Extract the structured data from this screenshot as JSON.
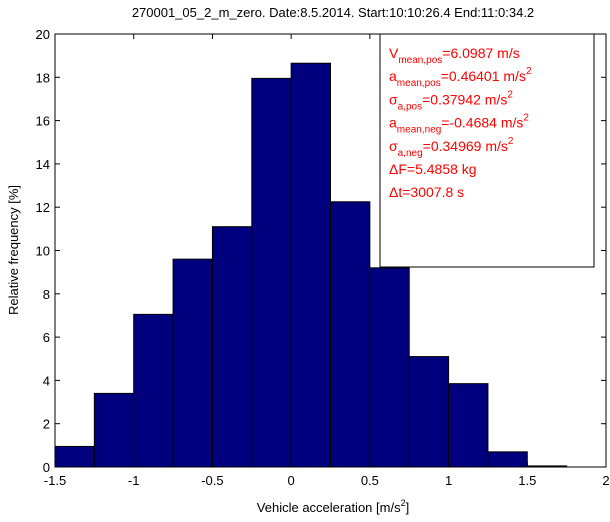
{
  "colors": {
    "bar_fill": "#00007f",
    "bar_edge": "#000000",
    "annotation": "#ff0000",
    "axes": "#000000",
    "background": "#ffffff"
  },
  "chart_data": {
    "type": "bar",
    "title": "270001_05_2_m_zero. Date:8.5.2014. Start:10:10:26.4 End:11:0:34.2",
    "xlabel": "Vehicle acceleration [m/s",
    "xlabel_sup": "2",
    "xlabel_end": "]",
    "ylabel": "Relative frequency [%]",
    "xlim": [
      -1.5,
      2
    ],
    "ylim": [
      0,
      20
    ],
    "bin_edges": [
      -1.5,
      -1.25,
      -1.0,
      -0.75,
      -0.5,
      -0.25,
      0.0,
      0.25,
      0.5,
      0.75,
      1.0,
      1.25,
      1.5,
      1.75,
      2.0
    ],
    "values": [
      0.95,
      3.4,
      7.05,
      9.6,
      11.1,
      17.95,
      18.65,
      12.25,
      9.2,
      5.1,
      3.85,
      0.7,
      0.05,
      0.0
    ],
    "x_ticks": [
      -1.5,
      -1,
      -0.5,
      0,
      0.5,
      1,
      1.5,
      2
    ],
    "x_tick_labels": [
      "-1.5",
      "-1",
      "-0.5",
      "0",
      "0.5",
      "1",
      "1.5",
      "2"
    ],
    "y_ticks": [
      0,
      2,
      4,
      6,
      8,
      10,
      12,
      14,
      16,
      18,
      20
    ],
    "y_tick_labels": [
      "0",
      "2",
      "4",
      "6",
      "8",
      "10",
      "12",
      "14",
      "16",
      "18",
      "20"
    ],
    "grid": false,
    "annotation_lines": [
      {
        "sym": "V",
        "sub": "mean,pos",
        "val": "=6.0987 m/s",
        "sup": ""
      },
      {
        "sym": "a",
        "sub": "mean,pos",
        "val": "=0.46401 m/s",
        "sup": "2"
      },
      {
        "sym": "σ",
        "sub": "a,pos",
        "val": "=0.37942 m/s",
        "sup": "2"
      },
      {
        "sym": "a",
        "sub": "mean,neg",
        "val": "=-0.4684 m/s",
        "sup": "2"
      },
      {
        "sym": "σ",
        "sub": "a,neg",
        "val": "=0.34969 m/s",
        "sup": "2"
      },
      {
        "sym": "ΔF",
        "sub": "",
        "val": "=5.4858 kg",
        "sup": ""
      },
      {
        "sym": "Δt",
        "sub": "",
        "val": "=3007.8 s",
        "sup": ""
      }
    ]
  }
}
